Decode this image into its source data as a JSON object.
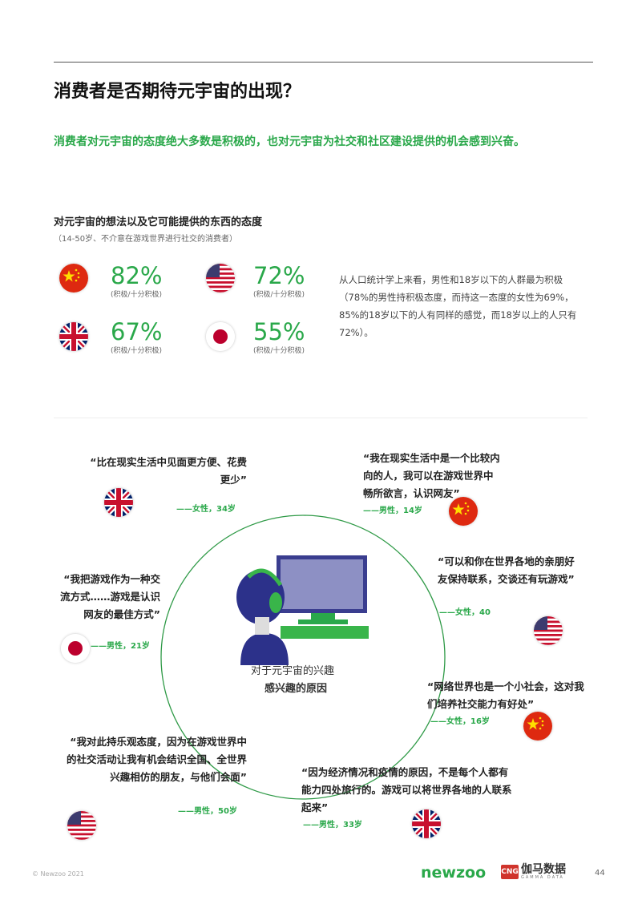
{
  "header": {
    "title": "消费者是否期待元宇宙的出现？",
    "subtitle": "消费者对元宇宙的态度绝大多数是积极的，也对元宇宙为社交和社区建设提供的机会感到兴奋。"
  },
  "section": {
    "heading": "对元宇宙的想法以及它可能提供的东西的态度",
    "subheading": "（14-50岁、不介意在游戏世界进行社交的消费者）",
    "stats": [
      {
        "country": "china",
        "value": "82%",
        "label": "(积极/十分积极)"
      },
      {
        "country": "usa",
        "value": "72%",
        "label": "(积极/十分积极)"
      },
      {
        "country": "uk",
        "value": "67%",
        "label": "(积极/十分积极)"
      },
      {
        "country": "japan",
        "value": "55%",
        "label": "(积极/十分积极)"
      }
    ],
    "paragraph": "从人口统计学上来看，男性和18岁以下的人群最为积极（78%的男性持积极态度，而持这一态度的女性为69%，85%的18岁以下的人有同样的感觉，而18岁以上的人只有72%）。"
  },
  "diagram": {
    "center_line1": "对于元宇宙的兴趣",
    "center_line2": "感兴趣的原因",
    "quotes": [
      {
        "text": "“比在现实生活中见面更方便、花费更少”",
        "attr": "——女性，34岁",
        "country": "uk"
      },
      {
        "text": "“我在现实生活中是一个比较内向的人，我可以在游戏世界中畅所欲言，认识网友”",
        "attr": "——男性，14岁",
        "country": "china"
      },
      {
        "text": "“可以和你在世界各地的亲朋好友保持联系，交谈还有玩游戏”",
        "attr": "——女性，40",
        "country": "usa"
      },
      {
        "text": "“我把游戏作为一种交流方式……游戏是认识网友的最佳方式”",
        "attr": "——男性，21岁",
        "country": "japan"
      },
      {
        "text": "“网络世界也是一个小社会，这对我们培养社交能力有好处”",
        "attr": "——女性，16岁",
        "country": "china"
      },
      {
        "text": "“我对此持乐观态度，因为在游戏世界中的社交活动让我有机会结识全国、全世界兴趣相仿的朋友，与他们会面”",
        "attr": "——男性，50岁",
        "country": "usa"
      },
      {
        "text": "“因为经济情况和疫情的原因，不是每个人都有能力四处旅行的。游戏可以将世界各地的人联系起来”",
        "attr": "——男性，33岁",
        "country": "uk"
      }
    ]
  },
  "footer": {
    "copyright": "© Newzoo 2021",
    "logo_newzoo": "newzoo",
    "logo_gamma": "伽马数据",
    "logo_gamma_sub": "GAMMA DATA",
    "logo_gamma_mark": "CNG",
    "page": "44"
  },
  "colors": {
    "accent": "#2aa84a",
    "circle": "#2f9a47"
  }
}
